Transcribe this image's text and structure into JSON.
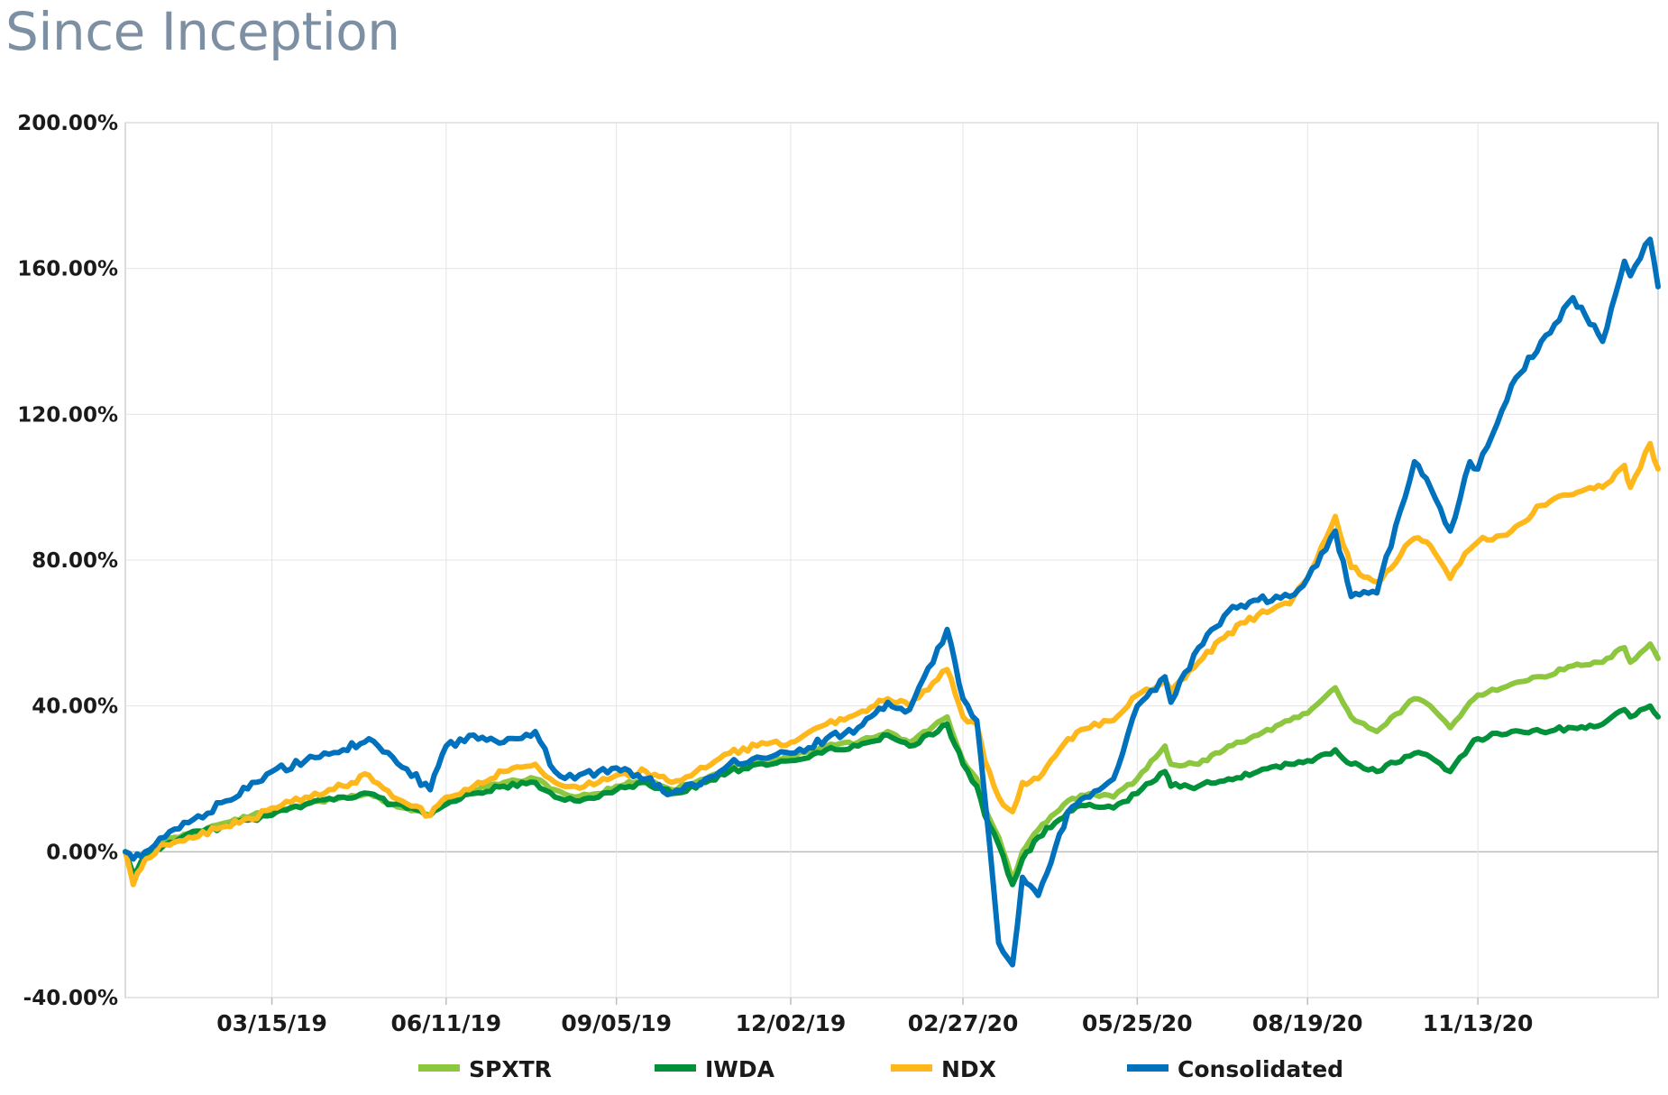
{
  "title": "Since Inception",
  "chart_data": {
    "type": "line",
    "title": "Since Inception",
    "xlabel": "",
    "ylabel": "",
    "x_start": "12/31/18",
    "x_end": "02/12/21",
    "x_ticks": [
      "03/15/19",
      "06/11/19",
      "09/05/19",
      "12/02/19",
      "02/27/20",
      "05/25/20",
      "08/19/20",
      "11/13/20"
    ],
    "y_ticks": [
      "200.00%",
      "160.00%",
      "120.00%",
      "80.00%",
      "40.00%",
      "0.00%",
      "-40.00%"
    ],
    "ylim": [
      -40,
      200
    ],
    "grid": true,
    "legend_position": "bottom",
    "series": [
      {
        "name": "SPXTR",
        "color": "#8dc63f",
        "points": [
          [
            "12/31/18",
            0
          ],
          [
            "01/04/19",
            -8
          ],
          [
            "01/10/19",
            -1
          ],
          [
            "01/20/19",
            3
          ],
          [
            "02/01/19",
            5
          ],
          [
            "02/20/19",
            8
          ],
          [
            "03/05/19",
            10
          ],
          [
            "03/15/19",
            11
          ],
          [
            "04/01/19",
            13
          ],
          [
            "04/20/19",
            15
          ],
          [
            "05/03/19",
            16
          ],
          [
            "05/15/19",
            13
          ],
          [
            "06/03/19",
            10
          ],
          [
            "06/11/19",
            14
          ],
          [
            "06/25/19",
            17
          ],
          [
            "07/10/19",
            19
          ],
          [
            "07/26/19",
            20
          ],
          [
            "08/05/19",
            17
          ],
          [
            "08/15/19",
            15
          ],
          [
            "08/27/19",
            16
          ],
          [
            "09/05/19",
            18
          ],
          [
            "09/20/19",
            20
          ],
          [
            "10/03/19",
            17
          ],
          [
            "10/20/19",
            20
          ],
          [
            "11/01/19",
            23
          ],
          [
            "11/15/19",
            25
          ],
          [
            "12/02/19",
            26
          ],
          [
            "12/20/19",
            29
          ],
          [
            "01/05/20",
            30
          ],
          [
            "01/20/20",
            33
          ],
          [
            "01/31/20",
            30
          ],
          [
            "02/19/20",
            37
          ],
          [
            "02/27/20",
            25
          ],
          [
            "03/05/20",
            20
          ],
          [
            "03/09/20",
            12
          ],
          [
            "03/16/20",
            4
          ],
          [
            "03/23/20",
            -8
          ],
          [
            "03/28/20",
            0
          ],
          [
            "04/05/20",
            6
          ],
          [
            "04/20/20",
            14
          ],
          [
            "05/01/20",
            16
          ],
          [
            "05/13/20",
            15
          ],
          [
            "05/25/20",
            20
          ],
          [
            "06/08/20",
            29
          ],
          [
            "06/11/20",
            24
          ],
          [
            "06/25/20",
            24
          ],
          [
            "07/10/20",
            29
          ],
          [
            "07/25/20",
            32
          ],
          [
            "08/10/20",
            36
          ],
          [
            "08/19/20",
            38
          ],
          [
            "09/02/20",
            45
          ],
          [
            "09/10/20",
            37
          ],
          [
            "09/23/20",
            33
          ],
          [
            "10/12/20",
            42
          ],
          [
            "10/20/20",
            40
          ],
          [
            "10/30/20",
            34
          ],
          [
            "11/09/20",
            41
          ],
          [
            "11/13/20",
            43
          ],
          [
            "11/30/20",
            46
          ],
          [
            "12/15/20",
            48
          ],
          [
            "12/31/20",
            51
          ],
          [
            "01/15/21",
            52
          ],
          [
            "01/26/21",
            56
          ],
          [
            "01/29/21",
            52
          ],
          [
            "02/08/21",
            57
          ],
          [
            "02/12/21",
            53
          ]
        ]
      },
      {
        "name": "IWDA",
        "color": "#00913a",
        "points": [
          [
            "12/31/18",
            0
          ],
          [
            "01/04/19",
            -6
          ],
          [
            "01/10/19",
            -1
          ],
          [
            "01/20/19",
            2
          ],
          [
            "02/01/19",
            5
          ],
          [
            "02/20/19",
            7
          ],
          [
            "03/05/19",
            9
          ],
          [
            "03/15/19",
            10
          ],
          [
            "04/01/19",
            13
          ],
          [
            "04/20/19",
            15
          ],
          [
            "05/03/19",
            16
          ],
          [
            "05/15/19",
            13
          ],
          [
            "06/03/19",
            10
          ],
          [
            "06/11/19",
            13
          ],
          [
            "06/25/19",
            16
          ],
          [
            "07/10/19",
            18
          ],
          [
            "07/26/19",
            19
          ],
          [
            "08/05/19",
            15
          ],
          [
            "08/15/19",
            14
          ],
          [
            "08/27/19",
            15
          ],
          [
            "09/05/19",
            17
          ],
          [
            "09/20/19",
            19
          ],
          [
            "10/03/19",
            16
          ],
          [
            "10/20/19",
            19
          ],
          [
            "11/01/19",
            22
          ],
          [
            "11/15/19",
            24
          ],
          [
            "12/02/19",
            25
          ],
          [
            "12/20/19",
            28
          ],
          [
            "01/05/20",
            29
          ],
          [
            "01/20/20",
            32
          ],
          [
            "01/31/20",
            29
          ],
          [
            "02/19/20",
            35
          ],
          [
            "02/27/20",
            24
          ],
          [
            "03/05/20",
            18
          ],
          [
            "03/09/20",
            10
          ],
          [
            "03/16/20",
            2
          ],
          [
            "03/23/20",
            -9
          ],
          [
            "03/28/20",
            -2
          ],
          [
            "04/05/20",
            4
          ],
          [
            "04/20/20",
            11
          ],
          [
            "05/01/20",
            13
          ],
          [
            "05/13/20",
            12
          ],
          [
            "05/25/20",
            16
          ],
          [
            "06/08/20",
            22
          ],
          [
            "06/11/20",
            18
          ],
          [
            "06/25/20",
            18
          ],
          [
            "07/10/20",
            20
          ],
          [
            "07/25/20",
            22
          ],
          [
            "08/10/20",
            24
          ],
          [
            "08/19/20",
            25
          ],
          [
            "09/02/20",
            28
          ],
          [
            "09/10/20",
            24
          ],
          [
            "09/23/20",
            22
          ],
          [
            "10/12/20",
            27
          ],
          [
            "10/20/20",
            26
          ],
          [
            "10/30/20",
            22
          ],
          [
            "11/09/20",
            29
          ],
          [
            "11/13/20",
            31
          ],
          [
            "11/30/20",
            33
          ],
          [
            "12/15/20",
            33
          ],
          [
            "12/31/20",
            34
          ],
          [
            "01/15/21",
            35
          ],
          [
            "01/26/21",
            39
          ],
          [
            "01/29/21",
            37
          ],
          [
            "02/08/21",
            40
          ],
          [
            "02/12/21",
            37
          ]
        ]
      },
      {
        "name": "NDX",
        "color": "#ffb81c",
        "points": [
          [
            "12/31/18",
            0
          ],
          [
            "01/04/19",
            -9
          ],
          [
            "01/10/19",
            -2
          ],
          [
            "01/20/19",
            2
          ],
          [
            "02/01/19",
            4
          ],
          [
            "02/20/19",
            7
          ],
          [
            "03/05/19",
            9
          ],
          [
            "03/15/19",
            12
          ],
          [
            "04/01/19",
            15
          ],
          [
            "04/20/19",
            18
          ],
          [
            "05/03/19",
            21
          ],
          [
            "05/15/19",
            15
          ],
          [
            "06/03/19",
            10
          ],
          [
            "06/11/19",
            15
          ],
          [
            "06/25/19",
            18
          ],
          [
            "07/10/19",
            22
          ],
          [
            "07/26/19",
            24
          ],
          [
            "08/05/19",
            19
          ],
          [
            "08/15/19",
            18
          ],
          [
            "08/27/19",
            19
          ],
          [
            "09/05/19",
            21
          ],
          [
            "09/20/19",
            22
          ],
          [
            "10/03/19",
            19
          ],
          [
            "10/20/19",
            23
          ],
          [
            "11/01/19",
            27
          ],
          [
            "11/15/19",
            29
          ],
          [
            "12/02/19",
            30
          ],
          [
            "12/20/19",
            35
          ],
          [
            "01/05/20",
            38
          ],
          [
            "01/20/20",
            42
          ],
          [
            "01/31/20",
            40
          ],
          [
            "02/19/20",
            50
          ],
          [
            "02/27/20",
            37
          ],
          [
            "03/05/20",
            35
          ],
          [
            "03/09/20",
            25
          ],
          [
            "03/16/20",
            15
          ],
          [
            "03/23/20",
            11
          ],
          [
            "03/28/20",
            19
          ],
          [
            "04/05/20",
            20
          ],
          [
            "04/20/20",
            31
          ],
          [
            "05/01/20",
            34
          ],
          [
            "05/13/20",
            36
          ],
          [
            "05/25/20",
            43
          ],
          [
            "06/08/20",
            47
          ],
          [
            "06/11/20",
            44
          ],
          [
            "06/25/20",
            52
          ],
          [
            "07/10/20",
            60
          ],
          [
            "07/25/20",
            65
          ],
          [
            "08/10/20",
            68
          ],
          [
            "08/19/20",
            75
          ],
          [
            "09/02/20",
            92
          ],
          [
            "09/10/20",
            78
          ],
          [
            "09/23/20",
            74
          ],
          [
            "10/12/20",
            86
          ],
          [
            "10/20/20",
            84
          ],
          [
            "10/30/20",
            75
          ],
          [
            "11/09/20",
            83
          ],
          [
            "11/13/20",
            85
          ],
          [
            "11/30/20",
            88
          ],
          [
            "12/15/20",
            95
          ],
          [
            "12/31/20",
            98
          ],
          [
            "01/15/21",
            100
          ],
          [
            "01/26/21",
            106
          ],
          [
            "01/29/21",
            100
          ],
          [
            "02/08/21",
            112
          ],
          [
            "02/12/21",
            105
          ]
        ]
      },
      {
        "name": "Consolidated",
        "color": "#0071bc",
        "points": [
          [
            "12/31/18",
            0
          ],
          [
            "01/04/19",
            -2
          ],
          [
            "01/10/19",
            0
          ],
          [
            "01/20/19",
            4
          ],
          [
            "02/01/19",
            8
          ],
          [
            "02/20/19",
            14
          ],
          [
            "03/05/19",
            19
          ],
          [
            "03/15/19",
            22
          ],
          [
            "04/01/19",
            25
          ],
          [
            "04/20/19",
            28
          ],
          [
            "05/03/19",
            31
          ],
          [
            "05/15/19",
            26
          ],
          [
            "06/03/19",
            17
          ],
          [
            "06/11/19",
            29
          ],
          [
            "06/25/19",
            32
          ],
          [
            "07/10/19",
            30
          ],
          [
            "07/26/19",
            33
          ],
          [
            "08/05/19",
            22
          ],
          [
            "08/15/19",
            20
          ],
          [
            "08/27/19",
            22
          ],
          [
            "09/05/19",
            23
          ],
          [
            "09/20/19",
            20
          ],
          [
            "10/03/19",
            16
          ],
          [
            "10/20/19",
            20
          ],
          [
            "11/01/19",
            24
          ],
          [
            "11/15/19",
            26
          ],
          [
            "12/02/19",
            27
          ],
          [
            "12/20/19",
            31
          ],
          [
            "01/05/20",
            34
          ],
          [
            "01/20/20",
            41
          ],
          [
            "01/31/20",
            39
          ],
          [
            "02/19/20",
            61
          ],
          [
            "02/27/20",
            42
          ],
          [
            "03/05/20",
            36
          ],
          [
            "03/09/20",
            15
          ],
          [
            "03/16/20",
            -25
          ],
          [
            "03/23/20",
            -31
          ],
          [
            "03/28/20",
            -7
          ],
          [
            "04/05/20",
            -12
          ],
          [
            "04/20/20",
            11
          ],
          [
            "05/01/20",
            15
          ],
          [
            "05/13/20",
            20
          ],
          [
            "05/25/20",
            40
          ],
          [
            "06/08/20",
            48
          ],
          [
            "06/11/20",
            41
          ],
          [
            "06/25/20",
            56
          ],
          [
            "07/10/20",
            66
          ],
          [
            "07/25/20",
            69
          ],
          [
            "08/10/20",
            70
          ],
          [
            "08/19/20",
            75
          ],
          [
            "09/02/20",
            88
          ],
          [
            "09/10/20",
            70
          ],
          [
            "09/23/20",
            71
          ],
          [
            "10/12/20",
            107
          ],
          [
            "10/20/20",
            100
          ],
          [
            "10/30/20",
            88
          ],
          [
            "11/09/20",
            107
          ],
          [
            "11/13/20",
            105
          ],
          [
            "11/30/20",
            128
          ],
          [
            "12/15/20",
            140
          ],
          [
            "12/31/20",
            152
          ],
          [
            "01/15/21",
            140
          ],
          [
            "01/26/21",
            162
          ],
          [
            "01/29/21",
            158
          ],
          [
            "02/08/21",
            168
          ],
          [
            "02/12/21",
            155
          ]
        ]
      }
    ]
  }
}
